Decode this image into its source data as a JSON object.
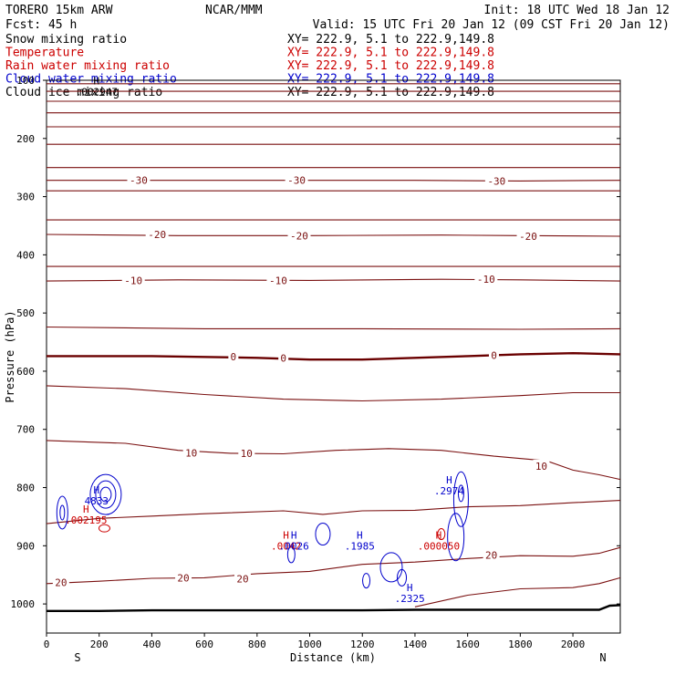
{
  "header": {
    "model": "TORERO  15km ARW",
    "org": "NCAR/MMM",
    "init": "Init: 18 UTC Wed 18 Jan 12",
    "fcst": "Fcst:   45 h",
    "valid": "Valid: 15 UTC Fri 20 Jan 12 (09 CST Fri 20 Jan 12)"
  },
  "fields": [
    {
      "name": "Snow mixing ratio",
      "xy": "XY= 222.9,  5.1 to 222.9,149.8",
      "color": "#000000"
    },
    {
      "name": "Temperature",
      "xy": "XY= 222.9,  5.1 to 222.9,149.8",
      "color": "#cc0000"
    },
    {
      "name": "Rain water mixing ratio",
      "xy": "XY= 222.9,  5.1 to 222.9,149.8",
      "color": "#cc0000"
    },
    {
      "name": "Cloud water mixing ratio",
      "xy": "XY= 222.9,  5.1 to 222.9,149.8",
      "color": "#0000cc"
    },
    {
      "name": "Cloud ice mixing ratio",
      "xy": "XY= 222.9,  5.1 to 222.9,149.8",
      "color": "#000000"
    }
  ],
  "colors": {
    "temperature": "#7a1010",
    "temperature_zero": "#6a0000",
    "cloud_water": "#0000cc",
    "rain": "#cc0000",
    "terrain": "#000000"
  },
  "chart_data": {
    "type": "contour",
    "title": "",
    "xlabel": "Distance (km)",
    "ylabel": "Pressure (hPa)",
    "xlim": [
      0,
      2180
    ],
    "ylim": [
      100,
      1050
    ],
    "x_ticks": [
      0,
      200,
      400,
      600,
      800,
      1000,
      1200,
      1400,
      1600,
      1800,
      2000
    ],
    "y_ticks": [
      100,
      200,
      300,
      400,
      500,
      600,
      700,
      800,
      900,
      1000
    ],
    "x_end_labels": {
      "left": "S",
      "right": "N"
    },
    "temperature_lines": [
      {
        "value": null,
        "points": [
          [
            0,
            106
          ],
          [
            2180,
            106
          ]
        ]
      },
      {
        "value": null,
        "points": [
          [
            0,
            119
          ],
          [
            2180,
            119
          ]
        ]
      },
      {
        "value": null,
        "points": [
          [
            0,
            136
          ],
          [
            2180,
            136
          ]
        ]
      },
      {
        "value": null,
        "points": [
          [
            0,
            156
          ],
          [
            2180,
            156
          ]
        ]
      },
      {
        "value": null,
        "points": [
          [
            0,
            180
          ],
          [
            2180,
            180
          ]
        ]
      },
      {
        "value": null,
        "points": [
          [
            0,
            210
          ],
          [
            2180,
            210
          ]
        ]
      },
      {
        "value": null,
        "points": [
          [
            0,
            250
          ],
          [
            2180,
            250
          ]
        ]
      },
      {
        "value": -30,
        "points": [
          [
            0,
            272
          ],
          [
            1000,
            272
          ],
          [
            1400,
            272
          ],
          [
            1800,
            273
          ],
          [
            2180,
            272
          ]
        ]
      },
      {
        "value": null,
        "points": [
          [
            0,
            290
          ],
          [
            2180,
            290
          ]
        ]
      },
      {
        "value": null,
        "points": [
          [
            0,
            340
          ],
          [
            2180,
            340
          ]
        ]
      },
      {
        "value": -20,
        "points": [
          [
            0,
            365
          ],
          [
            500,
            367
          ],
          [
            1000,
            367
          ],
          [
            1500,
            366
          ],
          [
            1800,
            367
          ],
          [
            2180,
            368
          ]
        ]
      },
      {
        "value": null,
        "points": [
          [
            0,
            420
          ],
          [
            2180,
            420
          ]
        ]
      },
      {
        "value": -10,
        "points": [
          [
            0,
            445
          ],
          [
            500,
            443
          ],
          [
            1000,
            444
          ],
          [
            1500,
            442
          ],
          [
            1800,
            443
          ],
          [
            2180,
            445
          ]
        ]
      },
      {
        "value": null,
        "points": [
          [
            0,
            524
          ],
          [
            600,
            527
          ],
          [
            1200,
            527
          ],
          [
            1800,
            528
          ],
          [
            2180,
            527
          ]
        ]
      },
      {
        "value": 0,
        "points": [
          [
            0,
            574
          ],
          [
            400,
            574
          ],
          [
            800,
            577
          ],
          [
            1000,
            580
          ],
          [
            1200,
            580
          ],
          [
            1400,
            577
          ],
          [
            1600,
            574
          ],
          [
            1800,
            571
          ],
          [
            2000,
            569
          ],
          [
            2180,
            571
          ]
        ]
      },
      {
        "value": null,
        "points": [
          [
            0,
            625
          ],
          [
            300,
            630
          ],
          [
            600,
            640
          ],
          [
            900,
            648
          ],
          [
            1200,
            651
          ],
          [
            1500,
            648
          ],
          [
            1800,
            642
          ],
          [
            2000,
            637
          ],
          [
            2180,
            637
          ]
        ]
      },
      {
        "value": 10,
        "points": [
          [
            0,
            719
          ],
          [
            300,
            724
          ],
          [
            500,
            736
          ],
          [
            700,
            741
          ],
          [
            900,
            742
          ],
          [
            1100,
            736
          ],
          [
            1300,
            733
          ],
          [
            1500,
            736
          ],
          [
            1700,
            746
          ],
          [
            1900,
            754
          ],
          [
            2000,
            770
          ],
          [
            2100,
            778
          ],
          [
            2180,
            786
          ]
        ]
      },
      {
        "value": null,
        "points": [
          [
            0,
            862
          ],
          [
            200,
            853
          ],
          [
            400,
            849
          ],
          [
            600,
            845
          ],
          [
            900,
            840
          ],
          [
            1050,
            846
          ],
          [
            1200,
            840
          ],
          [
            1400,
            839
          ],
          [
            1600,
            833
          ],
          [
            1800,
            831
          ],
          [
            2000,
            826
          ],
          [
            2180,
            822
          ]
        ]
      },
      {
        "value": 20,
        "points": [
          [
            0,
            965
          ],
          [
            200,
            961
          ],
          [
            400,
            956
          ],
          [
            600,
            955
          ],
          [
            800,
            948
          ],
          [
            1000,
            944
          ],
          [
            1200,
            932
          ],
          [
            1400,
            928
          ],
          [
            1600,
            922
          ],
          [
            1800,
            917
          ],
          [
            2000,
            918
          ],
          [
            2100,
            913
          ],
          [
            2180,
            903
          ]
        ]
      },
      {
        "value": null,
        "points": [
          [
            1400,
            1005
          ],
          [
            1600,
            985
          ],
          [
            1800,
            974
          ],
          [
            2000,
            972
          ],
          [
            2100,
            965
          ],
          [
            2180,
            955
          ]
        ]
      }
    ],
    "terrain": [
      [
        0,
        1012
      ],
      [
        200,
        1012
      ],
      [
        400,
        1011
      ],
      [
        800,
        1011
      ],
      [
        1200,
        1011
      ],
      [
        1400,
        1010
      ],
      [
        1800,
        1010
      ],
      [
        2100,
        1010
      ],
      [
        2140,
        1003
      ],
      [
        2180,
        1002
      ]
    ],
    "labels": [
      {
        "text": "-30",
        "x": 350,
        "p": 272,
        "series": "Temperature"
      },
      {
        "text": "-30",
        "x": 950,
        "p": 272,
        "series": "Temperature"
      },
      {
        "text": "-30",
        "x": 1710,
        "p": 273,
        "series": "Temperature"
      },
      {
        "text": "-20",
        "x": 420,
        "p": 365,
        "series": "Temperature"
      },
      {
        "text": "-20",
        "x": 960,
        "p": 367,
        "series": "Temperature"
      },
      {
        "text": "-20",
        "x": 1830,
        "p": 368,
        "series": "Temperature"
      },
      {
        "text": "-10",
        "x": 330,
        "p": 444,
        "series": "Temperature"
      },
      {
        "text": "-10",
        "x": 880,
        "p": 444,
        "series": "Temperature"
      },
      {
        "text": "-10",
        "x": 1670,
        "p": 442,
        "series": "Temperature"
      },
      {
        "text": "0",
        "x": 710,
        "p": 575,
        "series": "Temperature"
      },
      {
        "text": "0",
        "x": 900,
        "p": 577,
        "series": "Temperature"
      },
      {
        "text": "0",
        "x": 1700,
        "p": 573,
        "series": "Temperature"
      },
      {
        "text": "10",
        "x": 550,
        "p": 740,
        "series": "Temperature"
      },
      {
        "text": "10",
        "x": 760,
        "p": 741,
        "series": "Temperature"
      },
      {
        "text": "10",
        "x": 1880,
        "p": 763,
        "series": "Temperature"
      },
      {
        "text": "20",
        "x": 55,
        "p": 963,
        "series": "Temperature"
      },
      {
        "text": "20",
        "x": 520,
        "p": 955,
        "series": "Temperature"
      },
      {
        "text": "20",
        "x": 745,
        "p": 957,
        "series": "Temperature"
      },
      {
        "text": "20",
        "x": 1690,
        "p": 916,
        "series": "Temperature"
      }
    ],
    "extrema": [
      {
        "mark": "H",
        "value": "4833",
        "x": 190,
        "p": 810,
        "series": "Cloud water mixing ratio"
      },
      {
        "mark": "H",
        "value": ".002195",
        "x": 150,
        "p": 843,
        "series": "Rain water mixing ratio"
      },
      {
        "mark": "H",
        "value": ".002947",
        "x": 190,
        "p": 107,
        "series": "Cloud ice mixing ratio"
      },
      {
        "mark": "H",
        "value": ".0042",
        "x": 910,
        "p": 888,
        "series": "Rain water mixing ratio"
      },
      {
        "mark": "H",
        "value": ".0026",
        "x": 940,
        "p": 888,
        "series": "Cloud water mixing ratio"
      },
      {
        "mark": "H",
        "value": ".1985",
        "x": 1190,
        "p": 888,
        "series": "Cloud water mixing ratio"
      },
      {
        "mark": "H",
        "value": ".2325",
        "x": 1380,
        "p": 978,
        "series": "Cloud water mixing ratio"
      },
      {
        "mark": "H",
        "value": ".2974",
        "x": 1530,
        "p": 793,
        "series": "Cloud water mixing ratio"
      },
      {
        "mark": "H",
        "value": ".000050",
        "x": 1490,
        "p": 888,
        "series": "Rain water mixing ratio"
      }
    ]
  }
}
